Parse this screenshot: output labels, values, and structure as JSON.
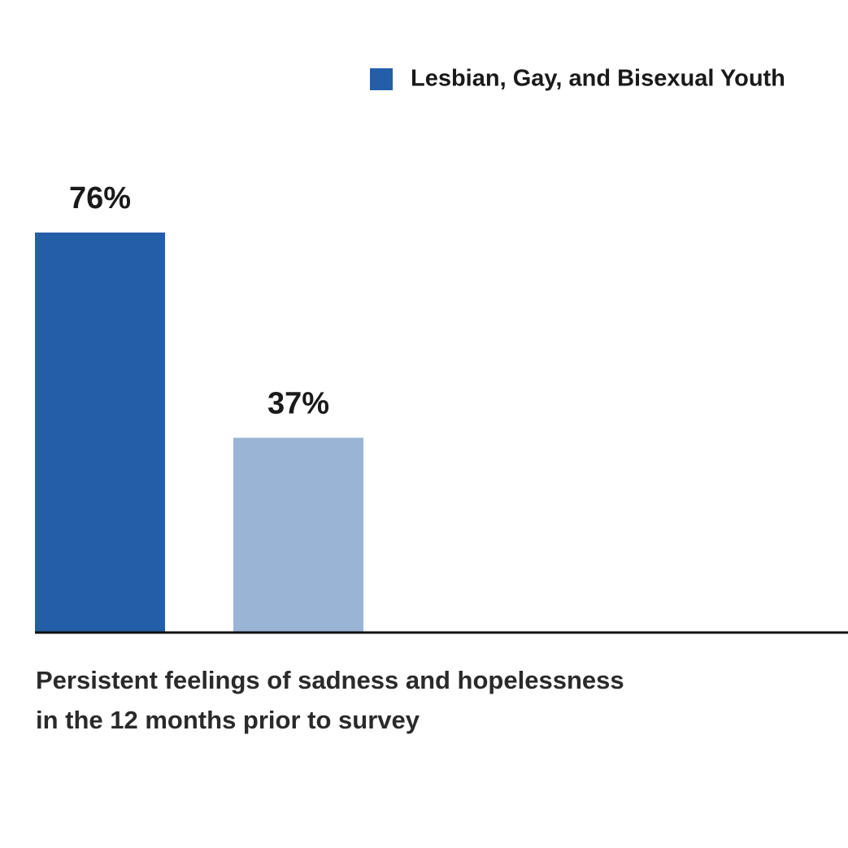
{
  "chart_data": {
    "type": "bar",
    "categories": [
      "Persistent feelings of sadness and hopelessness\nin the 12 months prior to survey"
    ],
    "series": [
      {
        "name": "Lesbian, Gay, and Bisexual Youth",
        "color": "#245ea8",
        "values": [
          76
        ],
        "value_labels": [
          "76%"
        ]
      },
      {
        "color": "#9ab4d6",
        "values": [
          37
        ],
        "value_labels": [
          "37%"
        ]
      }
    ],
    "legend": "top-right"
  }
}
